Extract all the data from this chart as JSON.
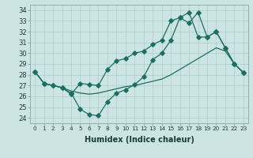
{
  "xlabel": "Humidex (Indice chaleur)",
  "xlim": [
    -0.5,
    23.5
  ],
  "ylim": [
    23.5,
    34.5
  ],
  "yticks": [
    24,
    25,
    26,
    27,
    28,
    29,
    30,
    31,
    32,
    33,
    34
  ],
  "xticks": [
    0,
    1,
    2,
    3,
    4,
    5,
    6,
    7,
    8,
    9,
    10,
    11,
    12,
    13,
    14,
    15,
    16,
    17,
    18,
    19,
    20,
    21,
    22,
    23
  ],
  "bg_color": "#cce4e4",
  "grid_color": "#aacccc",
  "line_color": "#1a7060",
  "line1_y": [
    28.3,
    27.2,
    27.0,
    26.8,
    26.2,
    27.2,
    27.1,
    27.0,
    28.5,
    29.3,
    29.5,
    30.0,
    30.2,
    30.8,
    31.2,
    33.0,
    33.3,
    33.8,
    31.5,
    31.5,
    32.0,
    30.5,
    29.0,
    28.2
  ],
  "line2_y": [
    28.3,
    27.2,
    27.0,
    26.8,
    26.5,
    26.3,
    26.2,
    26.3,
    26.5,
    26.7,
    26.9,
    27.0,
    27.2,
    27.4,
    27.6,
    28.0,
    28.5,
    29.0,
    29.5,
    30.0,
    30.5,
    30.2,
    29.0,
    28.2
  ],
  "line3_y": [
    28.3,
    27.2,
    27.0,
    26.8,
    26.3,
    24.8,
    24.3,
    24.2,
    25.5,
    26.3,
    26.6,
    27.1,
    27.8,
    29.4,
    30.0,
    31.2,
    33.3,
    32.8,
    33.8,
    31.5,
    32.0,
    30.5,
    29.0,
    28.2
  ]
}
